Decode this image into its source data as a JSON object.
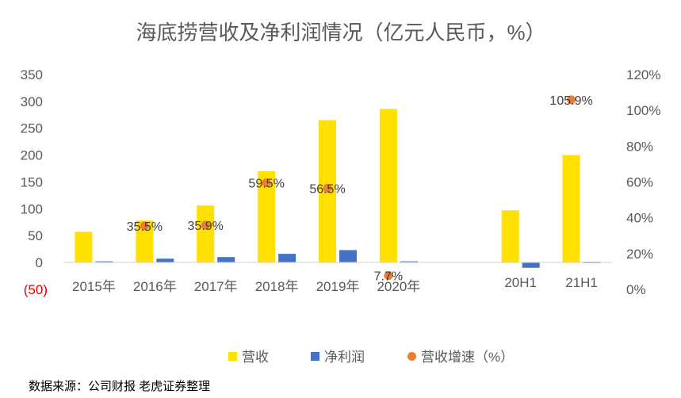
{
  "chart_data": {
    "type": "bar",
    "title": "海底捞营收及净利润情况（亿元人民币，%）",
    "categories": [
      "2015年",
      "2016年",
      "2017年",
      "2018年",
      "2019年",
      "2020年",
      "",
      "20H1",
      "21H1"
    ],
    "series": [
      {
        "name": "营收",
        "type": "bar",
        "axis": "left",
        "color": "#FFE000",
        "values": [
          57,
          78,
          106,
          170,
          265,
          286,
          null,
          97,
          200
        ]
      },
      {
        "name": "净利润",
        "type": "bar",
        "axis": "left",
        "color": "#4472C4",
        "values": [
          2,
          7,
          10,
          16,
          23,
          2,
          null,
          -10,
          1
        ]
      },
      {
        "name": "营收增速（%）",
        "type": "scatter",
        "axis": "right",
        "color": "#ED7D31",
        "values": [
          null,
          35.5,
          35.9,
          59.5,
          56.5,
          7.7,
          null,
          null,
          105.9
        ],
        "labels": [
          "",
          "35.5%",
          "35.9%",
          "59.5%",
          "56.5%",
          "7.7%",
          "",
          "",
          "105.9%"
        ]
      }
    ],
    "y_left": {
      "min": -50,
      "max": 350,
      "ticks": [
        "(50)",
        "0",
        "50",
        "100",
        "150",
        "200",
        "250",
        "300",
        "350"
      ]
    },
    "y_right": {
      "min": 0,
      "max": 120,
      "ticks": [
        "0%",
        "20%",
        "40%",
        "60%",
        "80%",
        "100%",
        "120%"
      ]
    },
    "grid": false,
    "legend_position": "bottom"
  },
  "footer": {
    "source": "数据来源：公司财报 老虎证券整理"
  }
}
